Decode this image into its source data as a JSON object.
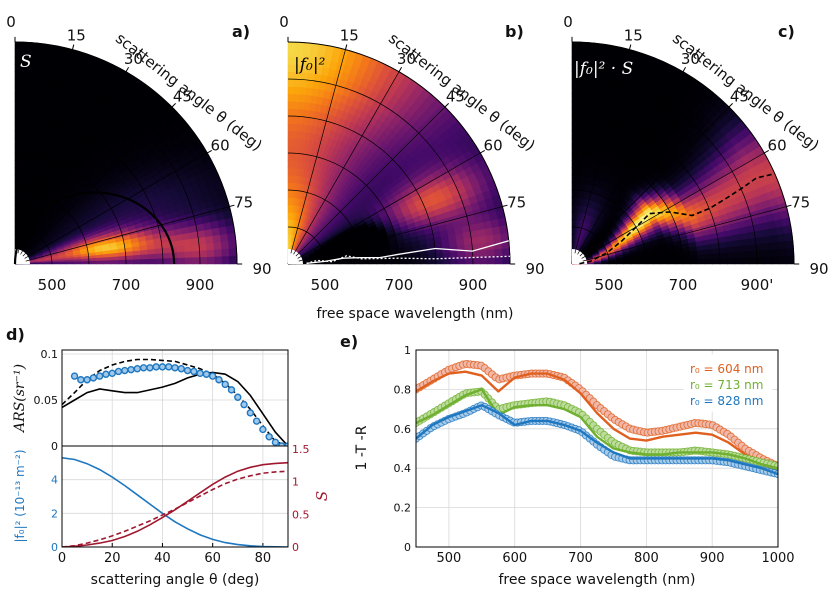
{
  "figure": {
    "panels_top": [
      {
        "letter": "a)",
        "quantity_label": "S",
        "map": "S"
      },
      {
        "letter": "b)",
        "quantity_label": "|f₀|²",
        "map": "F"
      },
      {
        "letter": "c)",
        "quantity_label": "|f₀|² · S",
        "map": "P"
      }
    ],
    "angle_axis_label": "scattering angle θ (deg)",
    "angle_ticks": [
      "0",
      "15",
      "30",
      "45",
      "60",
      "75",
      "90"
    ],
    "wavelength_ticks": [
      "500",
      "700",
      "900"
    ],
    "wavelength_ticks_c": [
      "500",
      "700",
      "900'"
    ],
    "top_xlabel": "free space wavelength (nm)",
    "panel_d_letter": "d)",
    "panel_e_letter": "e)",
    "colors": {
      "blue": "#1f77c0",
      "red": "#a01830",
      "orange": "#e06020",
      "green": "#70b030"
    }
  },
  "chart_data": [
    {
      "id": "a",
      "type": "heatmap",
      "title": "a)",
      "label": "S",
      "coordinates": "polar: radius = free space wavelength (nm), angle = scattering angle (deg)",
      "r_range": [
        400,
        1000
      ],
      "theta_range": [
        0,
        90
      ],
      "theta_ticks": [
        0,
        15,
        30,
        45,
        60,
        75,
        90
      ],
      "r_ticks": [
        500,
        700,
        900
      ],
      "colormap": "inferno",
      "overlay": {
        "style": "solid black",
        "shape": "circular arc",
        "x_at_90deg": [
          400,
          830
        ],
        "apex_theta_deg": 60
      }
    },
    {
      "id": "b",
      "type": "heatmap",
      "title": "b)",
      "label": "|f0|^2",
      "r_range": [
        400,
        1000
      ],
      "theta_range": [
        0,
        90
      ],
      "r_ticks": [
        500,
        700,
        900
      ],
      "colormap": "inferno",
      "overlays": [
        {
          "name": "solid white",
          "x": [
            450,
            500,
            550,
            600,
            650,
            700,
            800,
            900,
            1000
          ],
          "theta": [
            88,
            86,
            84,
            85,
            86,
            85,
            84,
            86,
            84
          ]
        },
        {
          "name": "dotted white",
          "x": [
            450,
            480,
            520,
            560,
            600,
            700,
            800,
            900,
            1000
          ],
          "theta": [
            88,
            83,
            87,
            82,
            86,
            87,
            88,
            88,
            88
          ]
        }
      ]
    },
    {
      "id": "c",
      "type": "heatmap",
      "title": "c)",
      "label": "|f0|^2 · S",
      "r_range": [
        400,
        1000
      ],
      "theta_range": [
        0,
        90
      ],
      "r_ticks": [
        500,
        700,
        900
      ],
      "colormap": "inferno",
      "overlay": {
        "style": "dashed black",
        "x": [
          420,
          450,
          500,
          550,
          600,
          650,
          700,
          750,
          800,
          850,
          900,
          950,
          1000
        ],
        "theta": [
          88,
          82,
          72,
          65,
          60,
          57,
          62,
          68,
          68,
          67,
          66,
          65,
          66
        ]
      }
    },
    {
      "id": "d_top",
      "type": "line",
      "x": [
        0,
        5,
        10,
        15,
        20,
        25,
        30,
        35,
        40,
        45,
        50,
        55,
        60,
        65,
        70,
        75,
        80,
        85,
        90
      ],
      "xlim": [
        0,
        90
      ],
      "ylim": [
        0,
        0.1
      ],
      "ylabel": "ARS(sr⁻¹)",
      "yticks": [
        "0",
        "0.05",
        "0.1"
      ],
      "series": [
        {
          "name": "solid",
          "style": "solid",
          "color": "#000000",
          "values": [
            0.042,
            0.05,
            0.058,
            0.062,
            0.06,
            0.058,
            0.058,
            0.061,
            0.064,
            0.068,
            0.074,
            0.078,
            0.08,
            0.078,
            0.07,
            0.055,
            0.035,
            0.015,
            0.0
          ]
        },
        {
          "name": "dashed",
          "style": "dashed",
          "color": "#000000",
          "values": [
            0.045,
            0.058,
            0.072,
            0.082,
            0.088,
            0.092,
            0.094,
            0.094,
            0.093,
            0.092,
            0.088,
            0.084,
            0.078,
            0.068,
            0.055,
            0.04,
            0.022,
            0.005,
            0.0
          ]
        },
        {
          "name": "circles",
          "style": "markers",
          "color": "#1f77c0",
          "x": [
            5,
            7.5,
            10,
            12.5,
            15,
            17.5,
            20,
            22.5,
            25,
            27.5,
            30,
            32.5,
            35,
            37.5,
            40,
            42.5,
            45,
            47.5,
            50,
            52.5,
            55,
            57.5,
            60,
            62.5,
            65,
            67.5,
            70,
            72.5,
            75,
            77.5,
            80,
            82.5,
            85,
            87.5,
            90
          ],
          "values": [
            0.076,
            0.072,
            0.072,
            0.074,
            0.076,
            0.078,
            0.079,
            0.081,
            0.082,
            0.083,
            0.084,
            0.085,
            0.085,
            0.086,
            0.086,
            0.086,
            0.085,
            0.084,
            0.082,
            0.081,
            0.079,
            0.078,
            0.076,
            0.072,
            0.067,
            0.061,
            0.053,
            0.045,
            0.036,
            0.027,
            0.018,
            0.01,
            0.004,
            0.0,
            0.0
          ]
        }
      ]
    },
    {
      "id": "d_bottom",
      "type": "line",
      "x": [
        0,
        5,
        10,
        15,
        20,
        25,
        30,
        35,
        40,
        45,
        50,
        55,
        60,
        65,
        70,
        75,
        80,
        85,
        90
      ],
      "xlim": [
        0,
        90
      ],
      "xlabel": "scattering angle θ (deg)",
      "xticks": [
        "0",
        "20",
        "40",
        "60",
        "80"
      ],
      "ylabel_left": "|f₀|² (10⁻¹³ m⁻²)",
      "ylabel_right": "S",
      "ylim_left": [
        0,
        6
      ],
      "ylim_right": [
        0,
        1.5
      ],
      "yticks_left": [
        "0",
        "2",
        "4"
      ],
      "yticks_right": [
        "0",
        "0.5",
        "1",
        "1.5"
      ],
      "series": [
        {
          "name": "|f0|^2",
          "axis": "left",
          "style": "solid",
          "color": "#1f77c0",
          "values": [
            5.3,
            5.2,
            4.95,
            4.6,
            4.15,
            3.65,
            3.1,
            2.55,
            2.0,
            1.5,
            1.08,
            0.72,
            0.45,
            0.26,
            0.14,
            0.07,
            0.03,
            0.01,
            0.0
          ]
        },
        {
          "name": "S solid",
          "axis": "right",
          "style": "solid",
          "color": "#a01830",
          "values": [
            0.0,
            0.01,
            0.03,
            0.06,
            0.1,
            0.16,
            0.24,
            0.34,
            0.45,
            0.57,
            0.7,
            0.83,
            0.96,
            1.07,
            1.16,
            1.22,
            1.26,
            1.28,
            1.29
          ]
        },
        {
          "name": "S dashed",
          "axis": "right",
          "style": "dashed",
          "color": "#a01830",
          "values": [
            0.0,
            0.02,
            0.06,
            0.11,
            0.17,
            0.24,
            0.32,
            0.4,
            0.49,
            0.58,
            0.68,
            0.78,
            0.88,
            0.97,
            1.04,
            1.09,
            1.13,
            1.15,
            1.16
          ]
        }
      ]
    },
    {
      "id": "e",
      "type": "line",
      "xlabel": "free space wavelength (nm)",
      "ylabel": "1 -T -R",
      "xlim": [
        450,
        1000
      ],
      "ylim": [
        0,
        1
      ],
      "xticks": [
        "500",
        "600",
        "700",
        "800",
        "900",
        "1000"
      ],
      "yticks": [
        "0",
        "0.2",
        "0.4",
        "0.6",
        "0.8",
        "1"
      ],
      "x": [
        450,
        475,
        500,
        525,
        550,
        575,
        600,
        625,
        650,
        675,
        700,
        725,
        750,
        775,
        800,
        825,
        850,
        875,
        900,
        925,
        950,
        975,
        1000
      ],
      "legend": [
        "r₀ = 604 nm",
        "r₀ = 713 nm",
        "r₀ = 828 nm"
      ],
      "legend_position": "top-right",
      "series": [
        {
          "name": "r0 = 604 nm",
          "color": "#e06020",
          "line": [
            0.79,
            0.84,
            0.88,
            0.89,
            0.87,
            0.79,
            0.86,
            0.88,
            0.88,
            0.85,
            0.78,
            0.68,
            0.6,
            0.55,
            0.54,
            0.56,
            0.57,
            0.58,
            0.57,
            0.53,
            0.47,
            0.42,
            0.39
          ],
          "markers": [
            0.8,
            0.85,
            0.9,
            0.93,
            0.92,
            0.85,
            0.87,
            0.88,
            0.88,
            0.86,
            0.8,
            0.72,
            0.65,
            0.6,
            0.58,
            0.59,
            0.61,
            0.63,
            0.62,
            0.57,
            0.5,
            0.45,
            0.41
          ]
        },
        {
          "name": "r0 = 713 nm",
          "color": "#70b030",
          "line": [
            0.63,
            0.67,
            0.72,
            0.77,
            0.8,
            0.67,
            0.71,
            0.72,
            0.72,
            0.7,
            0.66,
            0.56,
            0.5,
            0.48,
            0.47,
            0.47,
            0.48,
            0.48,
            0.48,
            0.47,
            0.45,
            0.42,
            0.4
          ],
          "markers": [
            0.63,
            0.68,
            0.73,
            0.78,
            0.79,
            0.7,
            0.72,
            0.73,
            0.74,
            0.72,
            0.68,
            0.6,
            0.53,
            0.49,
            0.48,
            0.48,
            0.48,
            0.49,
            0.48,
            0.47,
            0.45,
            0.43,
            0.41
          ]
        },
        {
          "name": "r0 = 828 nm",
          "color": "#1f77c0",
          "line": [
            0.55,
            0.62,
            0.66,
            0.69,
            0.72,
            0.68,
            0.62,
            0.64,
            0.64,
            0.62,
            0.59,
            0.53,
            0.48,
            0.45,
            0.45,
            0.45,
            0.45,
            0.45,
            0.45,
            0.44,
            0.42,
            0.4,
            0.37
          ],
          "markers": [
            0.55,
            0.61,
            0.65,
            0.68,
            0.72,
            0.67,
            0.63,
            0.64,
            0.64,
            0.62,
            0.59,
            0.52,
            0.46,
            0.44,
            0.44,
            0.44,
            0.44,
            0.44,
            0.44,
            0.43,
            0.41,
            0.39,
            0.37
          ]
        }
      ]
    }
  ]
}
